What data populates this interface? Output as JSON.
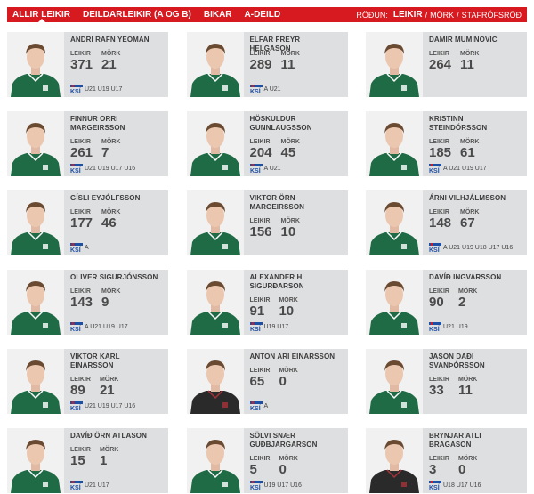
{
  "nav": {
    "items": [
      {
        "label": "ALLIR LEIKIR",
        "active": true
      },
      {
        "label": "DEILDARLEIKIR (A OG B)",
        "active": false
      },
      {
        "label": "BIKAR",
        "active": false
      },
      {
        "label": "A-DEILD",
        "active": false
      }
    ]
  },
  "sort": {
    "label": "RÖÐUN:",
    "options": [
      {
        "label": "LEIKIR",
        "active": true
      },
      {
        "label": "MÖRK",
        "active": false
      },
      {
        "label": "STAFRÓFSRÖÐ",
        "active": false
      }
    ]
  },
  "stat_labels": {
    "games": "LEIKIR",
    "goals": "MÖRK"
  },
  "colors": {
    "accent": "#d71920",
    "card_bg": "#dedfe1",
    "kit_green": "#1f6b45"
  },
  "players": [
    {
      "name": "ANDRI RAFN YEOMAN",
      "games": "371",
      "goals": "21",
      "teams": "U21 U19 U17",
      "kit": "green"
    },
    {
      "name": "ELFAR FREYR HELGASON",
      "games": "289",
      "goals": "11",
      "teams": "A U21",
      "kit": "green"
    },
    {
      "name": "DAMIR MUMINOVIC",
      "games": "264",
      "goals": "11",
      "teams": "",
      "kit": "green"
    },
    {
      "name": "FINNUR ORRI MARGEIRSSON",
      "games": "261",
      "goals": "7",
      "teams": "U21 U19 U17 U16",
      "kit": "green"
    },
    {
      "name": "HÖSKULDUR GUNNLAUGSSON",
      "games": "204",
      "goals": "45",
      "teams": "A U21",
      "kit": "green"
    },
    {
      "name": "KRISTINN STEINDÓRSSON",
      "games": "185",
      "goals": "61",
      "teams": "A U21 U19 U17",
      "kit": "green"
    },
    {
      "name": "GÍSLI EYJÓLFSSON",
      "games": "177",
      "goals": "46",
      "teams": "A",
      "kit": "green"
    },
    {
      "name": "VIKTOR ÖRN MARGEIRSSON",
      "games": "156",
      "goals": "10",
      "teams": "",
      "kit": "green"
    },
    {
      "name": "ÁRNI VILHJÁLMSSON",
      "games": "148",
      "goals": "67",
      "teams": "A U21 U19 U18 U17 U16",
      "kit": "green"
    },
    {
      "name": "OLIVER SIGURJÓNSSON",
      "games": "143",
      "goals": "9",
      "teams": "A U21 U19 U17",
      "kit": "green"
    },
    {
      "name": "ALEXANDER H SIGURÐARSON",
      "games": "91",
      "goals": "10",
      "teams": "U19 U17",
      "kit": "green"
    },
    {
      "name": "DAVÍÐ INGVARSSON",
      "games": "90",
      "goals": "2",
      "teams": "U21 U19",
      "kit": "green"
    },
    {
      "name": "VIKTOR KARL EINARSSON",
      "games": "89",
      "goals": "21",
      "teams": "U21 U19 U17 U16",
      "kit": "green"
    },
    {
      "name": "ANTON ARI EINARSSON",
      "games": "65",
      "goals": "0",
      "teams": "A",
      "kit": "black"
    },
    {
      "name": "JASON DAÐI SVANÞÓRSSON",
      "games": "33",
      "goals": "11",
      "teams": "",
      "kit": "green"
    },
    {
      "name": "DAVÍÐ ÖRN ATLASON",
      "games": "15",
      "goals": "1",
      "teams": "U21 U17",
      "kit": "green"
    },
    {
      "name": "SÖLVI SNÆR GUÐBJARGARSON",
      "games": "5",
      "goals": "0",
      "teams": "U19 U17 U16",
      "kit": "green"
    },
    {
      "name": "BRYNJAR ATLI BRAGASON",
      "games": "3",
      "goals": "0",
      "teams": "U18 U17 U16",
      "kit": "black"
    }
  ]
}
